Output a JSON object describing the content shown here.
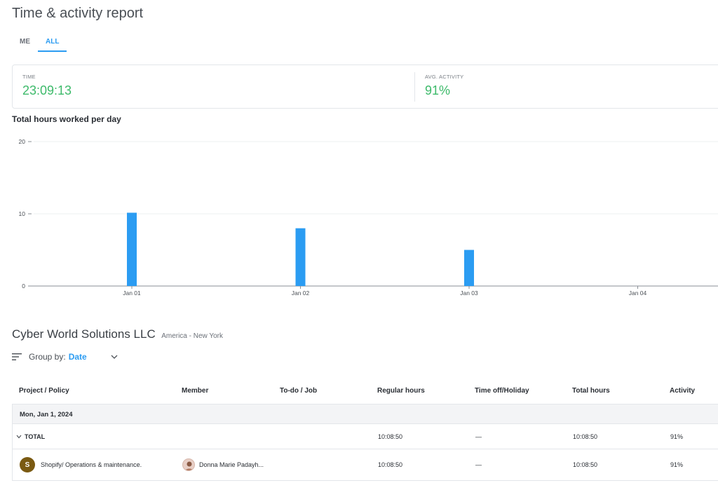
{
  "page": {
    "title": "Time & activity report"
  },
  "tabs": [
    {
      "label": "ME",
      "active": false
    },
    {
      "label": "ALL",
      "active": true
    }
  ],
  "stats": {
    "time": {
      "label": "TIME",
      "value": "23:09:13"
    },
    "activity": {
      "label": "AVG. ACTIVITY",
      "value": "91%"
    }
  },
  "chart": {
    "section_title": "Total hours worked per day"
  },
  "chart_data": {
    "type": "bar",
    "title": "Total hours worked per day",
    "categories": [
      "Jan 01",
      "Jan 02",
      "Jan 03",
      "Jan 04"
    ],
    "values": [
      10.15,
      8.0,
      5.0,
      0
    ],
    "ylim": [
      0,
      20
    ],
    "yticks": [
      0,
      10,
      20
    ],
    "grid": true,
    "bar_color": "#2b9cf2",
    "xlabel": "",
    "ylabel": ""
  },
  "company": {
    "name": "Cyber World Solutions LLC",
    "timezone": "America - New York"
  },
  "groupby": {
    "label": "Group by:",
    "value": "Date"
  },
  "table": {
    "columns": [
      "Project / Policy",
      "Member",
      "To-do / Job",
      "Regular hours",
      "Time off/Holiday",
      "Total hours",
      "Activity"
    ],
    "date_row": "Mon, Jan 1, 2024",
    "total_row": {
      "label": "TOTAL",
      "regular": "10:08:50",
      "timeoff": "—",
      "total": "10:08:50",
      "activity": "91%"
    },
    "rows": [
      {
        "avatar": "S",
        "project": "Shopify/ Operations & maintenance.",
        "member": "Donna Marie Padayh...",
        "regular": "10:08:50",
        "timeoff": "—",
        "total": "10:08:50",
        "activity": "91%"
      }
    ]
  },
  "colors": {
    "accent": "#2b9cf2",
    "positive": "#3dba6a"
  }
}
